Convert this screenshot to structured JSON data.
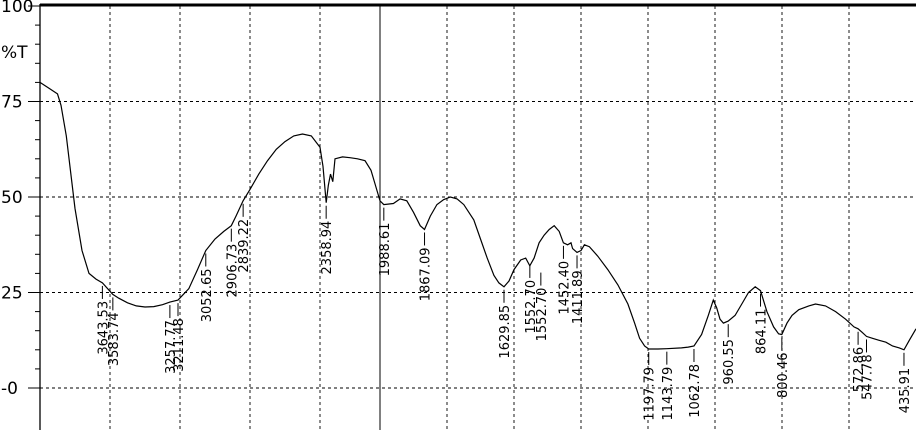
{
  "chart_data": {
    "type": "line",
    "ylabel": "%T",
    "ylim": [
      0,
      100
    ],
    "xlim": [
      4000,
      400
    ],
    "x_reversed": true,
    "grid": true,
    "y_ticks": [
      {
        "value": 100,
        "label": "100"
      },
      {
        "value": 75,
        "label": "75"
      },
      {
        "value": 50,
        "label": "50"
      },
      {
        "value": 25,
        "label": "25"
      },
      {
        "value": 0,
        "label": "-0"
      }
    ],
    "x_grid": [
      3600,
      3200,
      2800,
      2400,
      2000,
      1800,
      1600,
      1400,
      1200,
      1000,
      800,
      600
    ],
    "series": [
      {
        "points": [
          [
            4000,
            80
          ],
          [
            3950,
            78.5
          ],
          [
            3900,
            77
          ],
          [
            3880,
            74
          ],
          [
            3850,
            66
          ],
          [
            3800,
            47
          ],
          [
            3760,
            36
          ],
          [
            3720,
            30
          ],
          [
            3680,
            28.5
          ],
          [
            3643.53,
            27.5
          ],
          [
            3583.74,
            24.5
          ],
          [
            3550,
            23.5
          ],
          [
            3500,
            22.3
          ],
          [
            3450,
            21.5
          ],
          [
            3400,
            21.2
          ],
          [
            3350,
            21.3
          ],
          [
            3300,
            21.8
          ],
          [
            3257.77,
            22.5
          ],
          [
            3211.48,
            23
          ],
          [
            3150,
            26
          ],
          [
            3100,
            31
          ],
          [
            3052.65,
            36
          ],
          [
            3000,
            39
          ],
          [
            2950,
            41
          ],
          [
            2906.73,
            42.5
          ],
          [
            2880,
            45
          ],
          [
            2839.22,
            49
          ],
          [
            2800,
            52
          ],
          [
            2750,
            56
          ],
          [
            2700,
            59.5
          ],
          [
            2650,
            62.5
          ],
          [
            2600,
            64.5
          ],
          [
            2550,
            66
          ],
          [
            2500,
            66.5
          ],
          [
            2450,
            66
          ],
          [
            2400,
            63
          ],
          [
            2380,
            58
          ],
          [
            2358.94,
            48.5
          ],
          [
            2345,
            53
          ],
          [
            2330,
            56
          ],
          [
            2315,
            54
          ],
          [
            2300,
            60
          ],
          [
            2250,
            60.5
          ],
          [
            2200,
            60.3
          ],
          [
            2150,
            60
          ],
          [
            2100,
            59.5
          ],
          [
            2060,
            57
          ],
          [
            2030,
            53
          ],
          [
            2000,
            49
          ],
          [
            1988.61,
            48
          ],
          [
            1960,
            48.3
          ],
          [
            1940,
            49.5
          ],
          [
            1920,
            49
          ],
          [
            1900,
            46
          ],
          [
            1880,
            42.5
          ],
          [
            1867.09,
            41.5
          ],
          [
            1850,
            45
          ],
          [
            1830,
            48
          ],
          [
            1810,
            49.3
          ],
          [
            1790,
            50
          ],
          [
            1770,
            49.5
          ],
          [
            1750,
            48
          ],
          [
            1720,
            44
          ],
          [
            1700,
            39
          ],
          [
            1680,
            34
          ],
          [
            1660,
            29.5
          ],
          [
            1645,
            27.5
          ],
          [
            1629.85,
            26.5
          ],
          [
            1615,
            28
          ],
          [
            1600,
            31
          ],
          [
            1580,
            33.5
          ],
          [
            1565,
            34
          ],
          [
            1552.7,
            32
          ],
          [
            1540,
            34
          ],
          [
            1525,
            38
          ],
          [
            1510,
            40
          ],
          [
            1495,
            41.5
          ],
          [
            1480,
            42.5
          ],
          [
            1465,
            41
          ],
          [
            1452.4,
            38
          ],
          [
            1440,
            37.5
          ],
          [
            1430,
            38
          ],
          [
            1425,
            36.5
          ],
          [
            1411.89,
            35.5
          ],
          [
            1400,
            36
          ],
          [
            1390,
            37.5
          ],
          [
            1375,
            37
          ],
          [
            1350,
            34.5
          ],
          [
            1320,
            31
          ],
          [
            1290,
            27
          ],
          [
            1260,
            22
          ],
          [
            1240,
            17
          ],
          [
            1225,
            13
          ],
          [
            1210,
            11
          ],
          [
            1197.79,
            10.2
          ],
          [
            1170,
            10.2
          ],
          [
            1143.79,
            10.3
          ],
          [
            1100,
            10.5
          ],
          [
            1080,
            10.7
          ],
          [
            1062.78,
            11
          ],
          [
            1040,
            14
          ],
          [
            1020,
            19
          ],
          [
            1005,
            23
          ],
          [
            995,
            21
          ],
          [
            985,
            18
          ],
          [
            975,
            17
          ],
          [
            960.55,
            17.5
          ],
          [
            940,
            19
          ],
          [
            920,
            22
          ],
          [
            900,
            25
          ],
          [
            880,
            26.5
          ],
          [
            864.11,
            25.5
          ],
          [
            845,
            20
          ],
          [
            825,
            16
          ],
          [
            810,
            14.2
          ],
          [
            800.46,
            14
          ],
          [
            785,
            17
          ],
          [
            770,
            19
          ],
          [
            750,
            20.5
          ],
          [
            720,
            21.5
          ],
          [
            700,
            22
          ],
          [
            670,
            21.5
          ],
          [
            640,
            20
          ],
          [
            610,
            18
          ],
          [
            585,
            16
          ],
          [
            572.86,
            15.5
          ],
          [
            560,
            14.5
          ],
          [
            547.78,
            13.5
          ],
          [
            530,
            13
          ],
          [
            510,
            12.5
          ],
          [
            490,
            12
          ],
          [
            470,
            11
          ],
          [
            450,
            10.5
          ],
          [
            435.91,
            10
          ],
          [
            420,
            12.5
          ],
          [
            400,
            15.5
          ]
        ]
      }
    ],
    "peaks": [
      {
        "x": 3643.53,
        "y": 27.5,
        "label": "3643.53"
      },
      {
        "x": 3583.74,
        "y": 24.5,
        "label": "3583.74"
      },
      {
        "x": 3257.77,
        "y": 22.5,
        "label": "3257.77"
      },
      {
        "x": 3211.48,
        "y": 23,
        "label": "3211.48"
      },
      {
        "x": 3052.65,
        "y": 36,
        "label": "3052.65"
      },
      {
        "x": 2906.73,
        "y": 42.5,
        "label": "2906.73"
      },
      {
        "x": 2839.22,
        "y": 49,
        "label": "2839.22"
      },
      {
        "x": 2358.94,
        "y": 48.5,
        "label": "2358.94"
      },
      {
        "x": 1988.61,
        "y": 48,
        "label": "1988.61"
      },
      {
        "x": 1867.09,
        "y": 41.5,
        "label": "1867.09"
      },
      {
        "x": 1629.85,
        "y": 26.5,
        "label": "1629.85"
      },
      {
        "x": 1552.7,
        "y": 33,
        "label": "1552.70"
      },
      {
        "x": 1552.7,
        "y": 31,
        "label": "1552.70"
      },
      {
        "x": 1452.4,
        "y": 38,
        "label": "1452.40"
      },
      {
        "x": 1411.89,
        "y": 35.5,
        "label": "1411.89"
      },
      {
        "x": 1197.79,
        "y": 10.2,
        "label": "1197.79"
      },
      {
        "x": 1143.79,
        "y": 10.3,
        "label": "1143.79"
      },
      {
        "x": 1062.78,
        "y": 11,
        "label": "1062.78"
      },
      {
        "x": 960.55,
        "y": 17.5,
        "label": "960.55"
      },
      {
        "x": 864.11,
        "y": 25.5,
        "label": "864.11"
      },
      {
        "x": 800.46,
        "y": 14,
        "label": "800.46"
      },
      {
        "x": 572.86,
        "y": 15.5,
        "label": "572.86"
      },
      {
        "x": 547.78,
        "y": 13.5,
        "label": "547.78"
      },
      {
        "x": 435.91,
        "y": 10,
        "label": "435.91"
      }
    ]
  }
}
